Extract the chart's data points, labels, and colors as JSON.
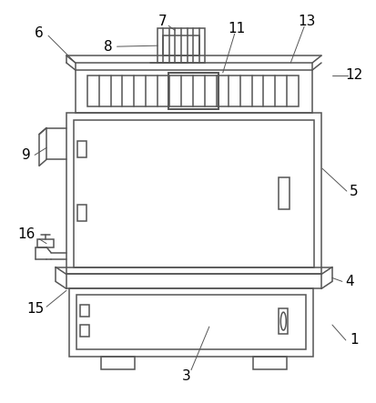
{
  "background_color": "#ffffff",
  "line_color": "#555555",
  "label_color": "#000000",
  "label_fontsize": 11,
  "anno_lw": 0.7,
  "draw_lw": 1.1
}
